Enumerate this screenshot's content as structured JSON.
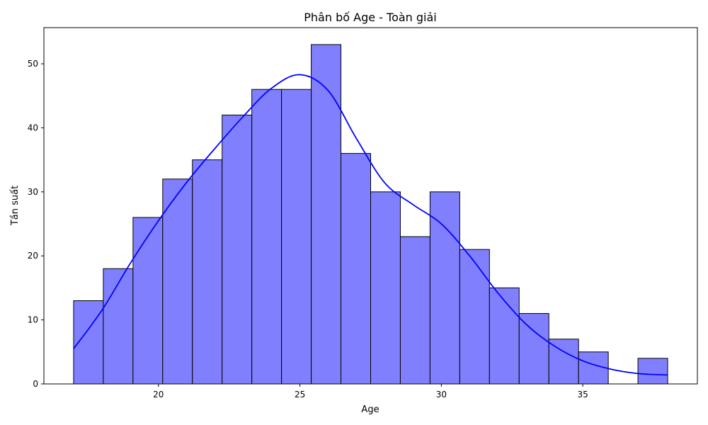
{
  "chart_data": {
    "type": "bar",
    "title": "Phân bố Age - Toàn giải",
    "xlabel": "Age",
    "ylabel": "Tần suất",
    "xlim": [
      15.95,
      39.05
    ],
    "ylim": [
      0,
      55.65
    ],
    "xticks": [
      20,
      25,
      30,
      35
    ],
    "yticks": [
      0,
      10,
      20,
      30,
      40,
      50
    ],
    "bins": {
      "start": 17,
      "width": 1.05,
      "counts": [
        13,
        18,
        26,
        32,
        35,
        42,
        46,
        46,
        53,
        36,
        30,
        23,
        30,
        21,
        15,
        11,
        7,
        5,
        0,
        4
      ]
    },
    "kde": {
      "x": [
        17.0,
        18.0,
        19.0,
        20.0,
        21.0,
        22.0,
        23.0,
        24.0,
        25.0,
        26.0,
        27.0,
        28.0,
        29.0,
        30.0,
        31.0,
        32.0,
        33.0,
        34.0,
        35.0,
        36.0,
        37.0,
        38.0
      ],
      "y": [
        5.5,
        11.5,
        18.8,
        25.5,
        31.5,
        36.8,
        41.8,
        46.2,
        48.3,
        45.8,
        38.3,
        31.4,
        28.0,
        25.0,
        20.0,
        14.2,
        9.3,
        5.9,
        3.6,
        2.3,
        1.6,
        1.4
      ]
    },
    "colors": {
      "bar_fill": "#8080ff",
      "bar_edge": "#000000",
      "kde_line": "#0000ff"
    }
  }
}
